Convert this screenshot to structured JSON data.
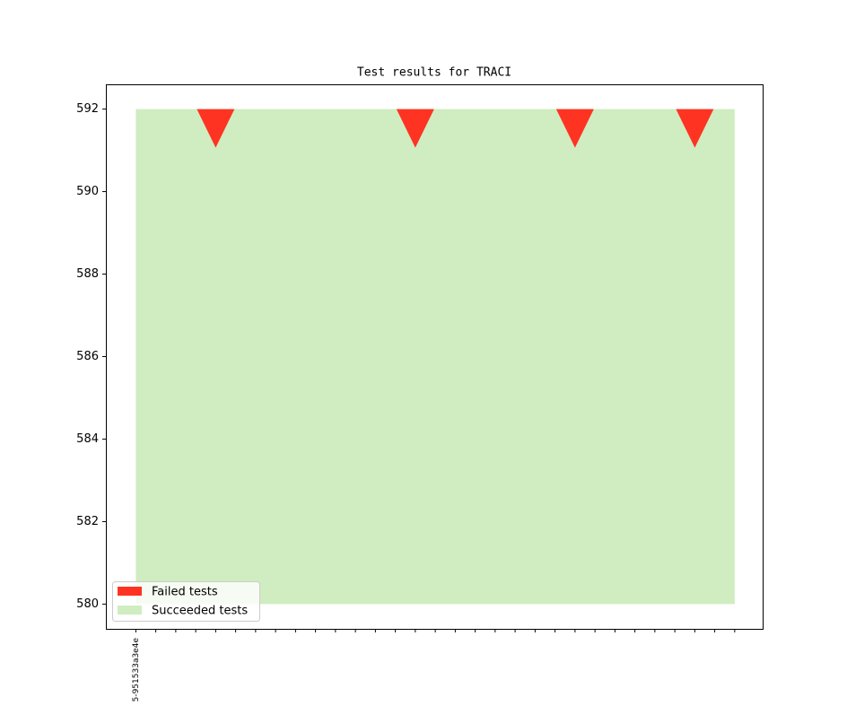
{
  "chart_data": {
    "type": "area",
    "title": "Test results for TRACI",
    "categories": [
      "5-951533a3e4e",
      null,
      null,
      null,
      null,
      null,
      null,
      null,
      null,
      null,
      null,
      null,
      null,
      null,
      null,
      null,
      null,
      null,
      null,
      null,
      null,
      null,
      null,
      null,
      null,
      null,
      null,
      null,
      null,
      null,
      null
    ],
    "xlim": [
      -1.5,
      31.4
    ],
    "ylim": [
      579.4,
      592.6
    ],
    "yticks": [
      580,
      582,
      584,
      586,
      588,
      590,
      592
    ],
    "legend": "lower left",
    "series": [
      {
        "name": "Failed tests",
        "color": "#ff3322",
        "marker": "v",
        "x": [
          4,
          14,
          22,
          28
        ],
        "values": [
          592,
          592,
          592,
          592
        ]
      },
      {
        "name": "Succeeded tests",
        "color": "#cfedc0",
        "base": 580,
        "values": [
          592,
          592,
          592,
          592,
          592,
          592,
          592,
          592,
          592,
          592,
          592,
          592,
          592,
          592,
          592,
          592,
          592,
          592,
          592,
          592,
          592,
          592,
          592,
          592,
          592,
          592,
          592,
          592,
          592,
          592,
          592
        ]
      }
    ]
  }
}
